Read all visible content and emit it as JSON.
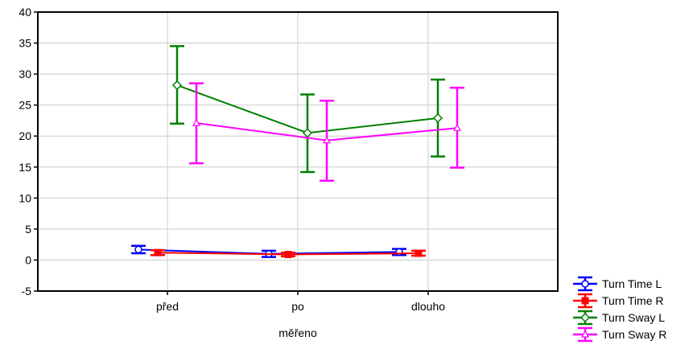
{
  "chart_data": {
    "type": "line",
    "title": "",
    "xlabel": "měřeno",
    "ylabel": "",
    "categories": [
      "před",
      "po",
      "dlouho"
    ],
    "ylim": [
      -5,
      40
    ],
    "yticks": [
      -5,
      0,
      5,
      10,
      15,
      20,
      25,
      30,
      35,
      40
    ],
    "grid": true,
    "legend_position": "bottom-right",
    "series": [
      {
        "name": "Turn Time L",
        "color": "#0000ff",
        "marker": "circle",
        "values": [
          1.7,
          1.0,
          1.3
        ],
        "err_low": [
          1.1,
          0.5,
          0.8
        ],
        "err_high": [
          2.3,
          1.5,
          1.8
        ]
      },
      {
        "name": "Turn Time R",
        "color": "#ff0000",
        "marker": "square",
        "values": [
          1.2,
          0.9,
          1.1
        ],
        "err_low": [
          0.8,
          0.6,
          0.7
        ],
        "err_high": [
          1.6,
          1.2,
          1.5
        ]
      },
      {
        "name": "Turn Sway L",
        "color": "#008000",
        "marker": "diamond",
        "values": [
          28.2,
          20.5,
          22.9
        ],
        "err_low": [
          22.0,
          14.2,
          16.7
        ],
        "err_high": [
          34.5,
          26.7,
          29.1
        ]
      },
      {
        "name": "Turn Sway R",
        "color": "#ff00ff",
        "marker": "triangle",
        "values": [
          22.1,
          19.3,
          21.3
        ],
        "err_low": [
          15.6,
          12.8,
          14.9
        ],
        "err_high": [
          28.5,
          25.7,
          27.8
        ]
      }
    ]
  }
}
